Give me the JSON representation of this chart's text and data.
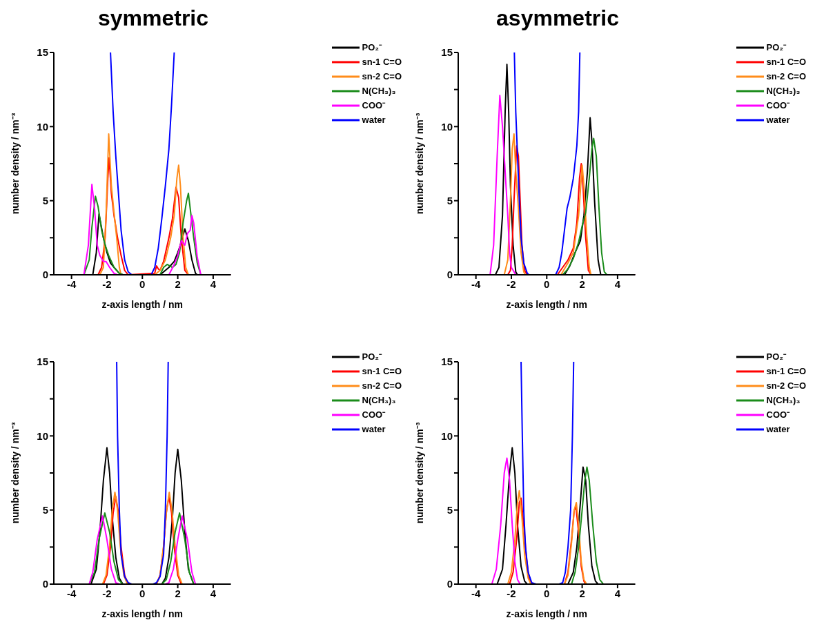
{
  "chart_data": [
    {
      "type": "line",
      "title": "symmetric",
      "xlabel": "z-axis length / nm",
      "ylabel": "number density / nm⁻³",
      "xlim": [
        -5,
        5
      ],
      "xticks": [
        -4,
        -2,
        0,
        2,
        4
      ],
      "ylim": [
        0,
        15
      ],
      "yticks": [
        0,
        {
          "value": 2.5,
          "label": null
        },
        5,
        {
          "value": 7.5,
          "label": null
        },
        10,
        {
          "value": 12.5,
          "label": null
        },
        15
      ],
      "legend": "top right",
      "marker": "none",
      "line_style": "solid",
      "series": [
        {
          "name": "PO₂⁻",
          "color": "#000000",
          "x": [
            -5,
            -2.8,
            -2.6,
            -2.45,
            -2.2,
            -2.0,
            -1.8,
            -1.6,
            -1.3,
            -1.1,
            1.0,
            1.2,
            1.5,
            1.8,
            2.0,
            2.2,
            2.4,
            2.6,
            2.8,
            3.0,
            3.1,
            5
          ],
          "values": [
            0,
            0,
            1.5,
            4.1,
            2.5,
            1.5,
            0.8,
            0.5,
            0.1,
            0,
            0,
            0.2,
            0.5,
            0.9,
            1.5,
            2.2,
            3.1,
            2.3,
            1.0,
            0.1,
            0,
            0
          ]
        },
        {
          "name": "sn-1 C=O",
          "color": "#ff0000",
          "x": [
            -5,
            -2.5,
            -2.3,
            -2.1,
            -1.95,
            -1.88,
            -1.75,
            -1.6,
            -1.4,
            -1.2,
            -1.0,
            -0.8,
            0.7,
            0.8,
            0.9,
            1.0,
            1.2,
            1.5,
            1.7,
            1.9,
            2.05,
            2.2,
            2.4,
            2.6,
            5
          ],
          "values": [
            0,
            0,
            0.5,
            2.5,
            6.5,
            7.9,
            5.5,
            4,
            2.5,
            1.3,
            0.3,
            0,
            0.1,
            0.6,
            0.4,
            0.3,
            0.9,
            2.5,
            3.8,
            5.9,
            5.2,
            2.5,
            0.3,
            0,
            0
          ]
        },
        {
          "name": "sn-2 C=O",
          "color": "#ff8c1a",
          "x": [
            -5,
            -2.4,
            -2.2,
            -2.05,
            -1.9,
            -1.75,
            -1.6,
            -1.45,
            -1.3,
            -1.2,
            0.7,
            1.0,
            1.3,
            1.6,
            1.8,
            1.95,
            2.05,
            2.15,
            2.3,
            2.45,
            2.6,
            5
          ],
          "values": [
            0,
            0,
            0.5,
            4,
            9.5,
            6,
            4.2,
            2.5,
            0.5,
            0,
            0,
            0.3,
            1.0,
            2.5,
            4,
            6.5,
            7.4,
            6,
            2.5,
            0.5,
            0,
            0
          ]
        },
        {
          "name": "N(CH₃)₃",
          "color": "#1a8c1a",
          "x": [
            -5,
            -3.3,
            -3.0,
            -2.85,
            -2.65,
            -2.5,
            -2.3,
            -2.1,
            -1.9,
            -1.6,
            -1.3,
            -1.1,
            1.0,
            1.2,
            1.4,
            1.7,
            1.9,
            2.1,
            2.3,
            2.5,
            2.6,
            2.75,
            2.9,
            3.1,
            3.3,
            5
          ],
          "values": [
            0,
            0,
            1,
            3.2,
            5.3,
            4.6,
            3,
            2,
            1.3,
            0.5,
            0.1,
            0,
            0,
            0.5,
            0.7,
            0.5,
            0.7,
            1.5,
            3.5,
            5.0,
            5.5,
            4,
            2.5,
            0.8,
            0,
            0
          ]
        },
        {
          "name": "COO⁻",
          "color": "#ff00ff",
          "x": [
            -5,
            -3.3,
            -3.05,
            -2.85,
            -2.7,
            -2.55,
            -2.4,
            -2.2,
            -2.05,
            -1.85,
            -1.6,
            -1.4,
            1.5,
            1.8,
            2.0,
            2.2,
            2.4,
            2.55,
            2.7,
            2.8,
            2.9,
            3.1,
            3.3,
            5
          ],
          "values": [
            0,
            0,
            2,
            6.1,
            4.5,
            2,
            1.3,
            0.9,
            0.9,
            0.5,
            0.1,
            0,
            0,
            0.7,
            1.3,
            2.3,
            2.0,
            2.8,
            3.0,
            4.0,
            3.5,
            1.2,
            0,
            0
          ]
        },
        {
          "name": "water",
          "color": "#0000ff",
          "x": [
            -1.8,
            -1.65,
            -1.5,
            -1.35,
            -1.2,
            -1.0,
            -0.8,
            -0.6,
            0.5,
            0.7,
            0.9,
            1.1,
            1.3,
            1.5,
            1.65,
            1.8
          ],
          "values": [
            15,
            11,
            8,
            5.5,
            3,
            1.0,
            0.2,
            0,
            0,
            0.5,
            1.8,
            3.8,
            6,
            8.5,
            11.5,
            15
          ]
        }
      ]
    },
    {
      "type": "line",
      "title": "asymmetric",
      "xlabel": "z-axis length / nm",
      "ylabel": "number density / nm⁻³",
      "xlim": [
        -5,
        5
      ],
      "xticks": [
        -4,
        -2,
        0,
        2,
        4
      ],
      "ylim": [
        0,
        15
      ],
      "yticks": [
        0,
        {
          "value": 2.5,
          "label": null
        },
        5,
        {
          "value": 7.5,
          "label": null
        },
        10,
        {
          "value": 12.5,
          "label": null
        },
        15
      ],
      "legend": "top right",
      "marker": "none",
      "line_style": "solid",
      "series": [
        {
          "name": "PO₂⁻",
          "color": "#000000",
          "x": [
            -5,
            -2.9,
            -2.7,
            -2.5,
            -2.35,
            -2.25,
            -2.15,
            -2.05,
            -1.9,
            -1.75,
            -1.65,
            1.0,
            1.3,
            1.6,
            1.9,
            2.1,
            2.3,
            2.45,
            2.55,
            2.7,
            2.9,
            3.05,
            5
          ],
          "values": [
            0,
            0,
            0.5,
            4,
            11,
            14.2,
            11,
            6,
            2,
            0.2,
            0,
            0,
            0.6,
            1.5,
            2.3,
            4,
            7,
            10.6,
            9,
            5,
            1.0,
            0,
            0
          ]
        },
        {
          "name": "sn-1 C=O",
          "color": "#ff0000",
          "x": [
            -5,
            -2.2,
            -2.05,
            -1.95,
            -1.85,
            -1.7,
            -1.6,
            -1.5,
            -1.4,
            -1.25,
            -1.1,
            0.6,
            0.9,
            1.2,
            1.5,
            1.7,
            1.85,
            1.95,
            2.05,
            2.2,
            2.35,
            2.5,
            5
          ],
          "values": [
            0,
            0,
            0.3,
            2,
            5,
            8.7,
            8,
            5,
            2,
            0.3,
            0,
            0,
            0.5,
            1.0,
            1.8,
            3.5,
            6.5,
            7.5,
            6,
            2.5,
            0.3,
            0,
            0
          ]
        },
        {
          "name": "sn-2 C=O",
          "color": "#ff8c1a",
          "x": [
            -5,
            -2.4,
            -2.2,
            -2.05,
            -1.95,
            -1.85,
            -1.75,
            -1.6,
            -1.45,
            -1.3,
            -1.2,
            0.8,
            1.2,
            1.5,
            1.8,
            1.95,
            2.0,
            2.1,
            2.25,
            2.4,
            2.5,
            5
          ],
          "values": [
            0,
            0,
            1,
            5,
            8.5,
            9.5,
            7,
            4.5,
            1.5,
            0.2,
            0,
            0,
            0.8,
            1.5,
            4,
            6.5,
            7.4,
            6,
            2.8,
            0.5,
            0,
            0
          ]
        },
        {
          "name": "N(CH₃)₃",
          "color": "#1a8c1a",
          "x": [
            -5,
            0.9,
            1.2,
            1.5,
            1.8,
            2.0,
            2.2,
            2.4,
            2.55,
            2.65,
            2.8,
            2.95,
            3.1,
            3.25,
            3.4,
            5
          ],
          "values": [
            0,
            0,
            0.4,
            1.1,
            2.2,
            3.3,
            4.2,
            6.5,
            8.5,
            9.2,
            8,
            4.5,
            1.5,
            0.2,
            0,
            0
          ]
        },
        {
          "name": "COO⁻",
          "color": "#ff00ff",
          "x": [
            -5,
            -3.2,
            -3.0,
            -2.8,
            -2.65,
            -2.5,
            -2.35,
            -2.2,
            -2.1,
            -2.0,
            -1.9,
            -1.75,
            5
          ],
          "values": [
            0,
            0,
            2,
            8,
            12.1,
            10,
            7,
            4,
            1.5,
            0.5,
            0.3,
            0,
            0
          ]
        },
        {
          "name": "water",
          "color": "#0000ff",
          "x": [
            -1.83,
            -1.75,
            -1.65,
            -1.55,
            -1.45,
            -1.3,
            -1.1,
            -1.0,
            0.5,
            0.7,
            0.85,
            1.0,
            1.15,
            1.3,
            1.5,
            1.7,
            1.8,
            1.87
          ],
          "values": [
            15,
            11,
            8,
            5,
            2.5,
            0.8,
            0.1,
            0,
            0,
            0.5,
            1.5,
            3.0,
            4.5,
            5.2,
            6.5,
            8.7,
            11,
            15
          ]
        }
      ]
    },
    {
      "type": "line",
      "xlabel": "z-axis length / nm",
      "ylabel": "number density / nm⁻³",
      "xlim": [
        -5,
        5
      ],
      "xticks": [
        -4,
        -2,
        0,
        2,
        4
      ],
      "ylim": [
        0,
        15
      ],
      "yticks": [
        0,
        {
          "value": 2.5,
          "label": null
        },
        5,
        {
          "value": 7.5,
          "label": null
        },
        10,
        {
          "value": 12.5,
          "label": null
        },
        15
      ],
      "legend": "top right",
      "marker": "none",
      "line_style": "solid",
      "series": [
        {
          "name": "PO₂⁻",
          "color": "#000000",
          "x": [
            -4.4,
            -2.9,
            -2.6,
            -2.4,
            -2.2,
            -2.0,
            -1.85,
            -1.7,
            -1.5,
            -1.3,
            -1.1,
            1.1,
            1.3,
            1.5,
            1.7,
            1.85,
            2.0,
            2.2,
            2.4,
            2.6,
            2.9,
            4.4
          ],
          "values": [
            0,
            0,
            1,
            3.5,
            7,
            9.2,
            7.5,
            4.5,
            1.8,
            0.4,
            0,
            0,
            0.4,
            1.8,
            4.5,
            7.5,
            9.1,
            7,
            3.5,
            1,
            0,
            0
          ]
        },
        {
          "name": "sn-1 C=O",
          "color": "#ff0000",
          "x": [
            -4.4,
            -2.2,
            -2.0,
            -1.8,
            -1.65,
            -1.5,
            -1.35,
            -1.2,
            -1.0,
            -0.8,
            0.8,
            1.0,
            1.2,
            1.35,
            1.5,
            1.65,
            1.8,
            2.0,
            2.2,
            4.4
          ],
          "values": [
            0,
            0,
            0.6,
            2.5,
            4.8,
            5.9,
            4.8,
            2.5,
            0.6,
            0,
            0,
            0.6,
            2.5,
            4.8,
            5.9,
            4.8,
            2.5,
            0.6,
            0,
            0
          ]
        },
        {
          "name": "sn-2 C=O",
          "color": "#ff8c1a",
          "x": [
            -4.4,
            -2.25,
            -2.05,
            -1.85,
            -1.7,
            -1.55,
            -1.4,
            -1.25,
            -1.05,
            -0.85,
            0.8,
            1.0,
            1.2,
            1.37,
            1.52,
            1.67,
            1.85,
            2.05,
            2.25,
            4.4
          ],
          "values": [
            0,
            0,
            0.6,
            2.6,
            5,
            6.2,
            5,
            2.6,
            0.6,
            0,
            0,
            0.6,
            2.6,
            5,
            6.2,
            5,
            2.6,
            0.6,
            0,
            0
          ]
        },
        {
          "name": "N(CH₃)₃",
          "color": "#1a8c1a",
          "x": [
            -4.4,
            -3.0,
            -2.7,
            -2.45,
            -2.12,
            -1.85,
            -1.6,
            -1.35,
            -1.1,
            1.1,
            1.35,
            1.6,
            1.85,
            2.1,
            2.4,
            2.65,
            2.9,
            4.4
          ],
          "values": [
            0,
            0,
            0.8,
            3,
            4.8,
            3.5,
            1.5,
            0.3,
            0,
            0,
            0.3,
            1.5,
            3.5,
            4.8,
            3,
            0.8,
            0,
            0
          ]
        },
        {
          "name": "COO⁻",
          "color": "#ff00ff",
          "x": [
            -4.4,
            -3.0,
            -2.8,
            -2.55,
            -2.25,
            -2.0,
            -1.75,
            -1.5,
            -1.3,
            1.3,
            1.5,
            1.75,
            2.0,
            2.25,
            2.55,
            2.8,
            3.0,
            4.4
          ],
          "values": [
            0,
            0,
            0.8,
            3,
            4.6,
            3,
            1,
            0.1,
            0,
            0,
            0.1,
            1,
            3,
            4.6,
            3,
            0.8,
            0,
            0
          ]
        },
        {
          "name": "water",
          "color": "#0000ff",
          "x": [
            -1.45,
            -1.4,
            -1.3,
            -1.2,
            -1.0,
            -0.8,
            -0.6,
            0.6,
            0.8,
            1.0,
            1.2,
            1.3,
            1.4,
            1.46
          ],
          "values": [
            15,
            10,
            5,
            2,
            0.5,
            0.1,
            0,
            0,
            0.1,
            0.5,
            2,
            5,
            10,
            15
          ]
        }
      ]
    },
    {
      "type": "line",
      "xlabel": "z-axis length / nm",
      "ylabel": "number density / nm⁻³",
      "xlim": [
        -5,
        5
      ],
      "xticks": [
        -4,
        -2,
        0,
        2,
        4
      ],
      "ylim": [
        0,
        15
      ],
      "yticks": [
        0,
        {
          "value": 2.5,
          "label": null
        },
        5,
        {
          "value": 7.5,
          "label": null
        },
        10,
        {
          "value": 12.5,
          "label": null
        },
        15
      ],
      "legend": "top right",
      "marker": "none",
      "line_style": "solid",
      "series": [
        {
          "name": "PO₂⁻",
          "color": "#000000",
          "x": [
            -4.4,
            -2.8,
            -2.5,
            -2.3,
            -2.1,
            -1.95,
            -1.8,
            -1.65,
            -1.45,
            -1.25,
            -1.1,
            1.2,
            1.5,
            1.7,
            1.9,
            2.05,
            2.2,
            2.35,
            2.55,
            2.75,
            2.9,
            4.4
          ],
          "values": [
            0,
            0,
            1,
            4,
            7.5,
            9.2,
            7.5,
            4,
            1.2,
            0.2,
            0,
            0,
            0.8,
            2.5,
            5.5,
            7.9,
            7,
            4,
            1.2,
            0.2,
            0,
            0
          ]
        },
        {
          "name": "sn-1 C=O",
          "color": "#ff0000",
          "x": [
            -4.4,
            -2.1,
            -1.9,
            -1.7,
            -1.55,
            -1.45,
            -1.3,
            -1.15,
            -1.0,
            -0.85,
            1.0,
            1.2,
            1.4,
            1.55,
            1.65,
            1.8,
            1.95,
            2.1,
            2.2,
            4.4
          ],
          "values": [
            0,
            0,
            0.8,
            3,
            5.5,
            5.8,
            4,
            1.8,
            0.4,
            0,
            0,
            0.8,
            3,
            5,
            5.2,
            3.5,
            1.2,
            0.2,
            0,
            0
          ]
        },
        {
          "name": "sn-2 C=O",
          "color": "#ff8c1a",
          "x": [
            -4.4,
            -2.2,
            -2.0,
            -1.8,
            -1.65,
            -1.55,
            -1.4,
            -1.25,
            -1.05,
            -0.9,
            1.0,
            1.2,
            1.4,
            1.55,
            1.67,
            1.8,
            1.95,
            2.1,
            2.25,
            4.4
          ],
          "values": [
            0,
            0,
            0.8,
            3,
            5.5,
            6.3,
            4.5,
            2,
            0.4,
            0,
            0,
            0.6,
            2.8,
            5,
            5.5,
            4,
            1.5,
            0.3,
            0,
            0
          ]
        },
        {
          "name": "N(CH₃)₃",
          "color": "#1a8c1a",
          "x": [
            -4.4,
            1.4,
            1.6,
            1.8,
            2.0,
            2.15,
            2.27,
            2.4,
            2.6,
            2.8,
            3.0,
            3.2,
            4.4
          ],
          "values": [
            0,
            0,
            0.8,
            2.5,
            5,
            7,
            7.9,
            7,
            4,
            1.5,
            0.3,
            0,
            0
          ]
        },
        {
          "name": "COO⁻",
          "color": "#ff00ff",
          "x": [
            -4.4,
            -3.1,
            -2.85,
            -2.6,
            -2.4,
            -2.25,
            -2.1,
            -1.95,
            -1.8,
            -1.65,
            -1.5,
            4.4
          ],
          "values": [
            0,
            0,
            1,
            4,
            7.5,
            8.5,
            7,
            4,
            1.5,
            0.3,
            0,
            0
          ]
        },
        {
          "name": "water",
          "color": "#0000ff",
          "x": [
            -1.45,
            -1.38,
            -1.3,
            -1.2,
            -1.05,
            -0.85,
            -0.6,
            0.7,
            0.9,
            1.05,
            1.2,
            1.35,
            1.45,
            1.52
          ],
          "values": [
            15,
            10,
            5,
            2.5,
            0.8,
            0.1,
            0,
            0,
            0.1,
            0.8,
            2.5,
            5,
            10,
            15
          ]
        }
      ]
    }
  ]
}
